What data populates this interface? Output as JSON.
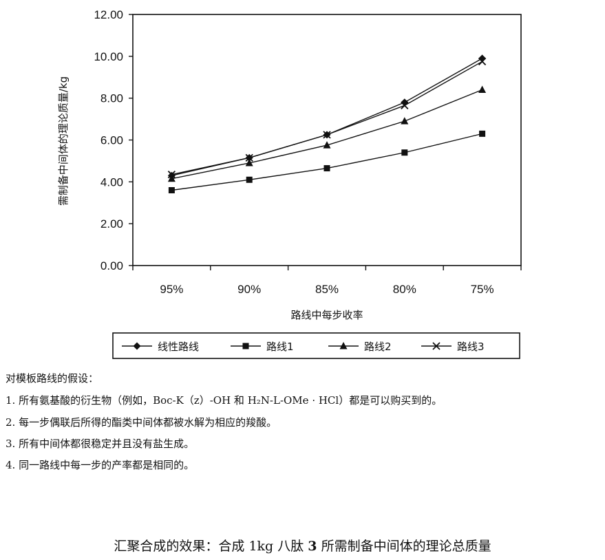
{
  "chart_data": {
    "type": "line",
    "title": "",
    "xlabel": "路线中每步收率",
    "ylabel": "需制备中间体的理论质量/kg",
    "categories": [
      "95%",
      "90%",
      "85%",
      "80%",
      "75%"
    ],
    "ylim": [
      0,
      12
    ],
    "yticks": [
      "0.00",
      "2.00",
      "4.00",
      "6.00",
      "8.00",
      "10.00",
      "12.00"
    ],
    "grid": false,
    "legend_position": "bottom",
    "series": [
      {
        "name": "线性路线",
        "marker": "diamond",
        "values": [
          4.3,
          5.15,
          6.25,
          7.8,
          9.9
        ]
      },
      {
        "name": "路线1",
        "marker": "square",
        "values": [
          3.6,
          4.1,
          4.65,
          5.4,
          6.3
        ]
      },
      {
        "name": "路线2",
        "marker": "triangle",
        "values": [
          4.15,
          4.9,
          5.75,
          6.9,
          8.4
        ]
      },
      {
        "name": "路线3",
        "marker": "x",
        "values": [
          4.35,
          5.15,
          6.25,
          7.65,
          9.75
        ]
      }
    ]
  },
  "notes": {
    "intro": "对模板路线的假设：",
    "items": [
      "1. 所有氨基酸的衍生物（例如，Boc-K（z）-OH 和 H₂N-L-OMe · HCl）都是可以购买到的。",
      "2. 每一步偶联后所得的酯类中间体都被水解为相应的羧酸。",
      "3. 所有中间体都很稳定并且没有盐生成。",
      "4. 同一路线中每一步的产率都是相同的。"
    ]
  },
  "caption": {
    "prefix": "汇聚合成的效果：合成 1kg 八肽 ",
    "bold": "3",
    "suffix": " 所需制备中间体的理论总质量"
  }
}
